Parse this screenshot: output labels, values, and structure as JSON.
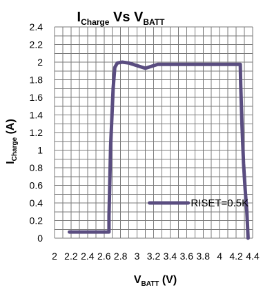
{
  "chart_data": {
    "type": "line",
    "title": {
      "main_1": "I",
      "sub_1": "Charge",
      "middle": " Vs  ",
      "main_2": "V",
      "sub_2": "BATT"
    },
    "xlabel": {
      "main": "V",
      "sub": "BATT",
      "unit": " (V)"
    },
    "ylabel": {
      "main": "I",
      "sub": "Charge",
      "unit": " (A)"
    },
    "xlim": [
      2.0,
      4.4
    ],
    "ylim": [
      0.0,
      2.4
    ],
    "x_ticks": [
      "2",
      "2.2",
      "2.4",
      "2.6",
      "2.8",
      "3",
      "3.2",
      "3.4",
      "3.6",
      "3.8",
      "4",
      "4.2",
      "4.4"
    ],
    "y_ticks": [
      "0",
      "0.2",
      "0.4",
      "0.6",
      "0.8",
      "1",
      "1.2",
      "1.4",
      "1.6",
      "1.8",
      "2",
      "2.2",
      "2.4"
    ],
    "grid": true,
    "legend_position": "lower-right",
    "series": [
      {
        "name": "RISET=0.5K",
        "color": "#5a4d80",
        "points": [
          [
            2.18,
            0.07
          ],
          [
            2.66,
            0.07
          ],
          [
            2.66,
            0.25
          ],
          [
            2.68,
            1.05
          ],
          [
            2.71,
            1.7
          ],
          [
            2.73,
            1.94
          ],
          [
            2.76,
            1.99
          ],
          [
            2.82,
            2.0
          ],
          [
            2.9,
            1.99
          ],
          [
            3.0,
            1.96
          ],
          [
            3.1,
            1.93
          ],
          [
            3.2,
            1.96
          ],
          [
            3.25,
            1.975
          ],
          [
            3.4,
            1.975
          ],
          [
            3.6,
            1.975
          ],
          [
            3.8,
            1.975
          ],
          [
            4.0,
            1.975
          ],
          [
            4.2,
            1.975
          ],
          [
            4.25,
            1.975
          ],
          [
            4.255,
            1.75
          ],
          [
            4.27,
            1.3
          ],
          [
            4.29,
            0.85
          ],
          [
            4.31,
            0.55
          ],
          [
            4.33,
            0.3
          ],
          [
            4.34,
            0.1
          ],
          [
            4.345,
            0.0
          ]
        ]
      }
    ]
  }
}
